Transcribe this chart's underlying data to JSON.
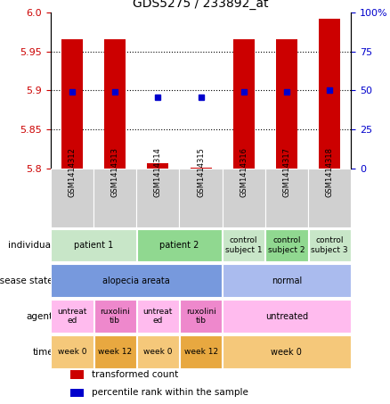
{
  "title": "GDS5275 / 233892_at",
  "samples": [
    "GSM1414312",
    "GSM1414313",
    "GSM1414314",
    "GSM1414315",
    "GSM1414316",
    "GSM1414317",
    "GSM1414318"
  ],
  "bar_values": [
    5.965,
    5.965,
    5.807,
    5.801,
    5.965,
    5.965,
    5.992
  ],
  "bar_base": 5.8,
  "dot_values": [
    49,
    49,
    46,
    46,
    49,
    49,
    50
  ],
  "ylim": [
    5.8,
    6.0
  ],
  "y2lim": [
    0,
    100
  ],
  "yticks": [
    5.8,
    5.85,
    5.9,
    5.95,
    6.0
  ],
  "y2ticks": [
    0,
    25,
    50,
    75,
    100
  ],
  "dotted_lines": [
    5.85,
    5.9,
    5.95
  ],
  "bar_color": "#cc0000",
  "dot_color": "#0000cc",
  "tick_color_left": "#cc0000",
  "tick_color_right": "#0000cc",
  "row_labels": [
    "individual",
    "disease state",
    "agent",
    "time"
  ],
  "individual_cells": [
    {
      "label": "patient 1",
      "span": [
        0,
        2
      ],
      "color": "#c8e6c8"
    },
    {
      "label": "patient 2",
      "span": [
        2,
        4
      ],
      "color": "#90d890"
    },
    {
      "label": "control\nsubject 1",
      "span": [
        4,
        5
      ],
      "color": "#c8e6c8"
    },
    {
      "label": "control\nsubject 2",
      "span": [
        5,
        6
      ],
      "color": "#90d890"
    },
    {
      "label": "control\nsubject 3",
      "span": [
        6,
        7
      ],
      "color": "#c8e6c8"
    }
  ],
  "disease_cells": [
    {
      "label": "alopecia areata",
      "span": [
        0,
        4
      ],
      "color": "#7799dd"
    },
    {
      "label": "normal",
      "span": [
        4,
        7
      ],
      "color": "#aabbee"
    }
  ],
  "agent_cells": [
    {
      "label": "untreat\ned",
      "span": [
        0,
        1
      ],
      "color": "#ffbbee"
    },
    {
      "label": "ruxolini\ntib",
      "span": [
        1,
        2
      ],
      "color": "#ee88cc"
    },
    {
      "label": "untreat\ned",
      "span": [
        2,
        3
      ],
      "color": "#ffbbee"
    },
    {
      "label": "ruxolini\ntib",
      "span": [
        3,
        4
      ],
      "color": "#ee88cc"
    },
    {
      "label": "untreated",
      "span": [
        4,
        7
      ],
      "color": "#ffbbee"
    }
  ],
  "time_cells": [
    {
      "label": "week 0",
      "span": [
        0,
        1
      ],
      "color": "#f5c87a"
    },
    {
      "label": "week 12",
      "span": [
        1,
        2
      ],
      "color": "#e8a840"
    },
    {
      "label": "week 0",
      "span": [
        2,
        3
      ],
      "color": "#f5c87a"
    },
    {
      "label": "week 12",
      "span": [
        3,
        4
      ],
      "color": "#e8a840"
    },
    {
      "label": "week 0",
      "span": [
        4,
        7
      ],
      "color": "#f5c87a"
    }
  ],
  "legend_bar_label": "transformed count",
  "legend_dot_label": "percentile rank within the sample",
  "bg_color": "#ffffff",
  "gsm_bg_color": "#d0d0d0"
}
